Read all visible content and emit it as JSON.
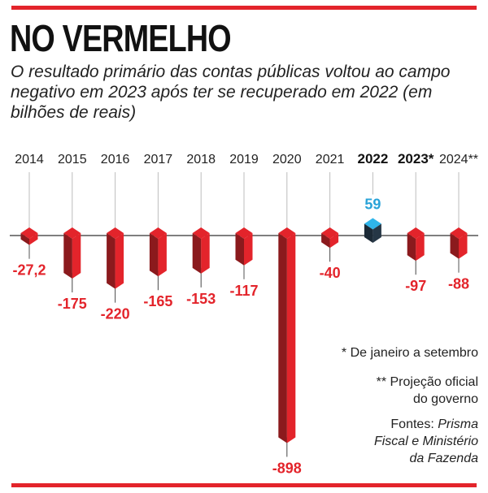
{
  "title": "NO VERMELHO",
  "subtitle": "O resultado primário das contas públicas voltou ao campo negativo em 2023 após ter se recuperado em 2022 (em bilhões de reais)",
  "notes": {
    "footnote1": "* De janeiro a setembro",
    "footnote2_line1": "** Projeção oficial",
    "footnote2_line2": "do governo",
    "sources_prefix": "Fontes: ",
    "sources_italic1": "Prisma",
    "sources_italic2": "Fiscal e Ministério",
    "sources_italic3": "da Fazenda"
  },
  "colors": {
    "negative": "#e3242b",
    "negative_dark": "#8b1a1d",
    "positive": "#29a3d8",
    "positive_top": "#2fb5ea",
    "positive_front": "#1c2a36"
  },
  "chart_data": {
    "type": "bar",
    "categories": [
      "2014",
      "2015",
      "2016",
      "2017",
      "2018",
      "2019",
      "2020",
      "2021",
      "2022",
      "2023*",
      "2024**"
    ],
    "values": [
      -27.2,
      -175,
      -220,
      -165,
      -153,
      -117,
      -898,
      -40,
      59,
      -97,
      -88
    ],
    "value_labels": [
      "-27,2",
      "-175",
      "-220",
      "-165",
      "-153",
      "-117",
      "-898",
      "-40",
      "59",
      "-97",
      "-88"
    ],
    "bold_categories": [
      "2022",
      "2023*"
    ],
    "title": "NO VERMELHO",
    "ylabel": "em bilhões de reais"
  }
}
